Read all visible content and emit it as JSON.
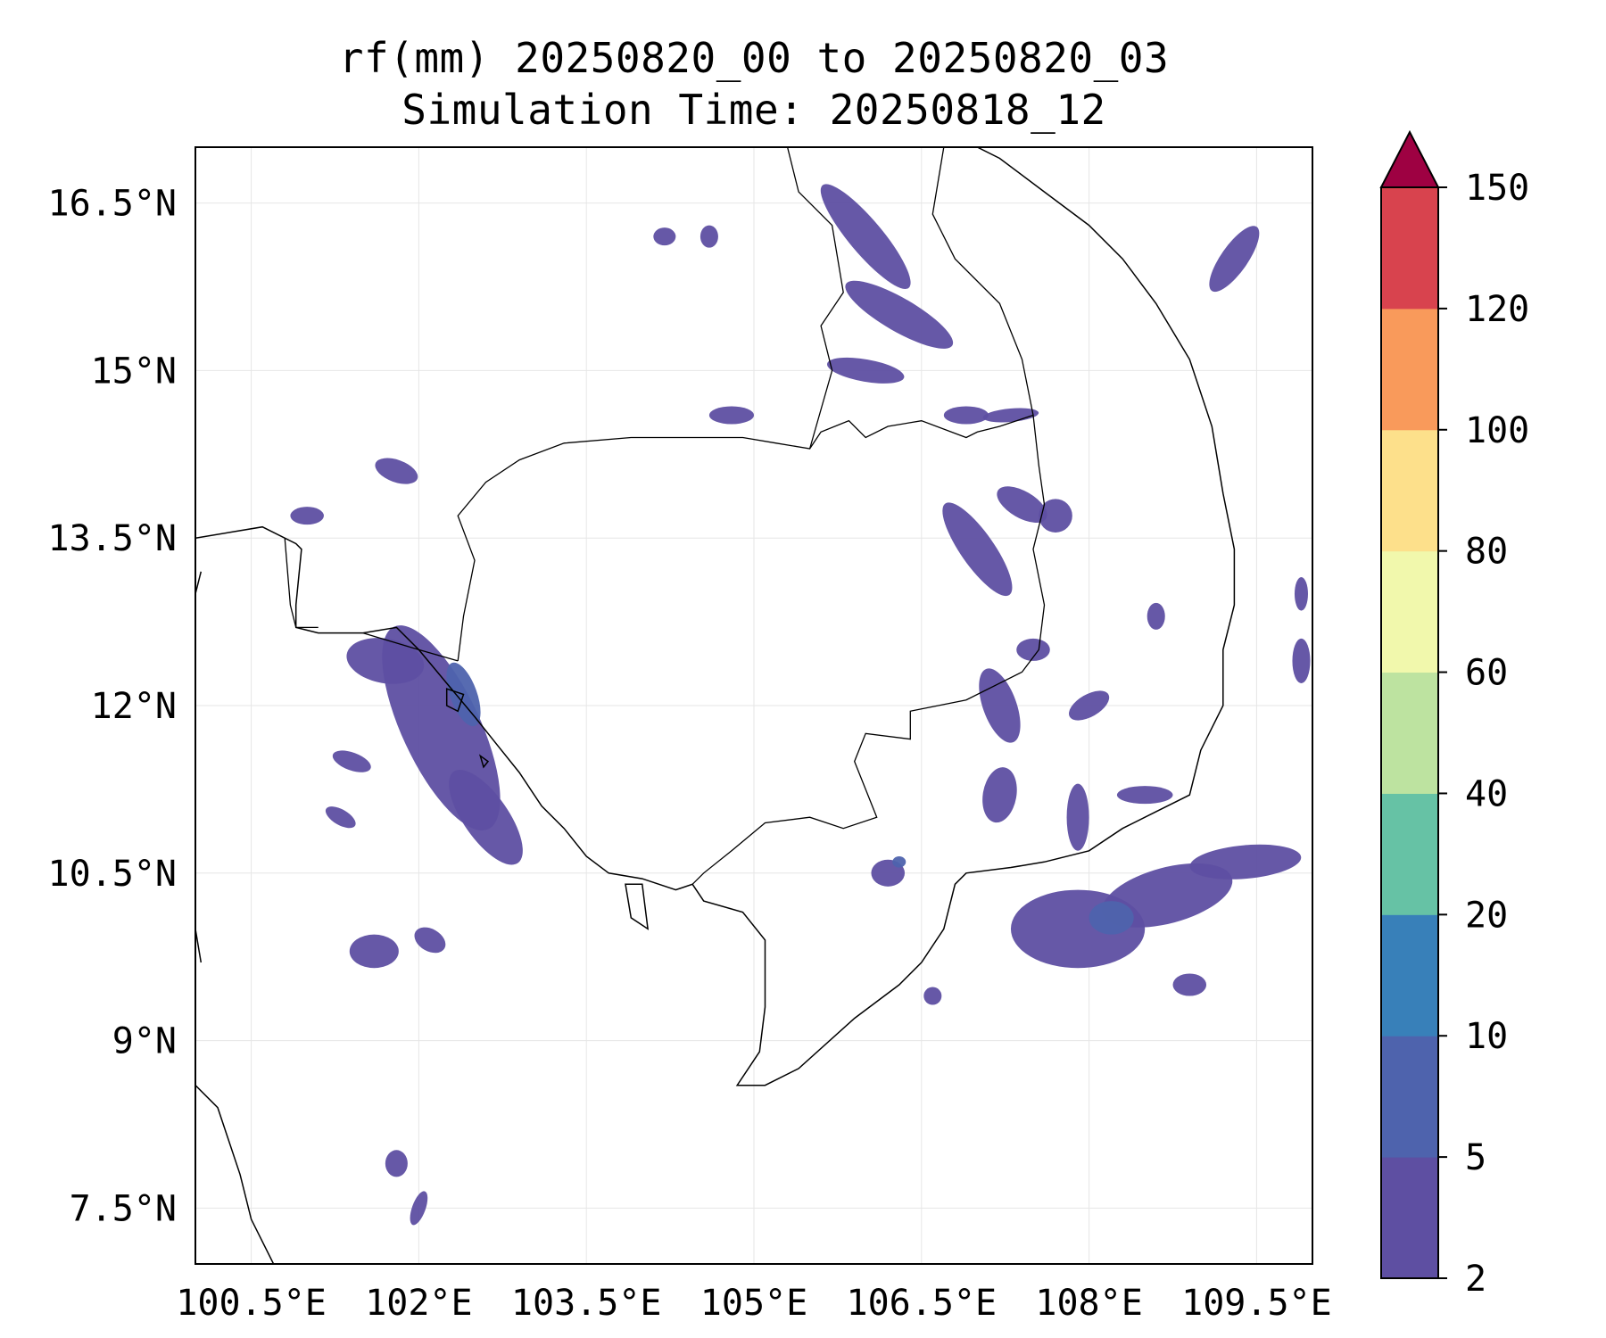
{
  "title": {
    "line1": "rf(mm) 20250820_00 to 20250820_03",
    "line2": "Simulation Time: 20250818_12"
  },
  "map": {
    "projection": "PlateCarree",
    "lon_range": [
      100.0,
      110.0
    ],
    "lat_range": [
      7.0,
      17.0
    ],
    "grid": true,
    "x_ticks": [
      {
        "value": 100.5,
        "label": "100.5°E"
      },
      {
        "value": 102.0,
        "label": "102°E"
      },
      {
        "value": 103.5,
        "label": "103.5°E"
      },
      {
        "value": 105.0,
        "label": "105°E"
      },
      {
        "value": 106.5,
        "label": "106.5°E"
      },
      {
        "value": 108.0,
        "label": "108°E"
      },
      {
        "value": 109.5,
        "label": "109.5°E"
      }
    ],
    "y_ticks": [
      {
        "value": 16.5,
        "label": "16.5°N"
      },
      {
        "value": 15.0,
        "label": "15°N"
      },
      {
        "value": 13.5,
        "label": "13.5°N"
      },
      {
        "value": 12.0,
        "label": "12°N"
      },
      {
        "value": 10.5,
        "label": "10.5°N"
      },
      {
        "value": 9.0,
        "label": "9°N"
      },
      {
        "value": 7.5,
        "label": "7.5°N"
      }
    ]
  },
  "colorbar": {
    "levels": [
      "2",
      "5",
      "10",
      "20",
      "40",
      "60",
      "80",
      "100",
      "120",
      "150"
    ],
    "colors": [
      "#5e4fa2",
      "#4e63ad",
      "#3880b9",
      "#66c2a5",
      "#bde3a0",
      "#f1f8ac",
      "#fde08b",
      "#f99a5b",
      "#d8434e"
    ],
    "extend_color": "#9e0142",
    "extend": "max"
  },
  "rain_cells": [
    {
      "lon": 102.2,
      "lat": 11.8,
      "rx": 0.35,
      "ry": 1.0,
      "rot": -25,
      "level": 1
    },
    {
      "lon": 102.6,
      "lat": 11.0,
      "rx": 0.2,
      "ry": 0.5,
      "rot": -35,
      "level": 1
    },
    {
      "lon": 101.7,
      "lat": 12.4,
      "rx": 0.35,
      "ry": 0.2,
      "rot": 10,
      "level": 1
    },
    {
      "lon": 102.4,
      "lat": 12.1,
      "rx": 0.12,
      "ry": 0.3,
      "rot": -20,
      "level": 2
    },
    {
      "lon": 101.4,
      "lat": 11.5,
      "rx": 0.18,
      "ry": 0.08,
      "rot": 20,
      "level": 1
    },
    {
      "lon": 101.3,
      "lat": 11.0,
      "rx": 0.15,
      "ry": 0.07,
      "rot": 30,
      "level": 1
    },
    {
      "lon": 101.6,
      "lat": 9.8,
      "rx": 0.22,
      "ry": 0.15,
      "rot": 0,
      "level": 1
    },
    {
      "lon": 102.1,
      "lat": 9.9,
      "rx": 0.15,
      "ry": 0.1,
      "rot": 30,
      "level": 1
    },
    {
      "lon": 101.8,
      "lat": 14.1,
      "rx": 0.2,
      "ry": 0.1,
      "rot": 20,
      "level": 1
    },
    {
      "lon": 101.0,
      "lat": 13.7,
      "rx": 0.15,
      "ry": 0.08,
      "rot": 0,
      "level": 1
    },
    {
      "lon": 101.8,
      "lat": 7.9,
      "rx": 0.1,
      "ry": 0.12,
      "rot": 0,
      "level": 1
    },
    {
      "lon": 102.0,
      "lat": 7.5,
      "rx": 0.06,
      "ry": 0.16,
      "rot": 20,
      "level": 1
    },
    {
      "lon": 104.2,
      "lat": 16.2,
      "rx": 0.1,
      "ry": 0.08,
      "rot": 0,
      "level": 1
    },
    {
      "lon": 104.6,
      "lat": 16.2,
      "rx": 0.08,
      "ry": 0.1,
      "rot": 0,
      "level": 1
    },
    {
      "lon": 104.8,
      "lat": 14.6,
      "rx": 0.2,
      "ry": 0.08,
      "rot": 0,
      "level": 1
    },
    {
      "lon": 106.0,
      "lat": 16.2,
      "rx": 0.15,
      "ry": 0.6,
      "rot": -40,
      "level": 1
    },
    {
      "lon": 106.3,
      "lat": 15.5,
      "rx": 0.55,
      "ry": 0.15,
      "rot": 30,
      "level": 1
    },
    {
      "lon": 106.0,
      "lat": 15.0,
      "rx": 0.35,
      "ry": 0.1,
      "rot": 10,
      "level": 1
    },
    {
      "lon": 106.9,
      "lat": 14.6,
      "rx": 0.2,
      "ry": 0.08,
      "rot": 0,
      "level": 1
    },
    {
      "lon": 107.3,
      "lat": 14.6,
      "rx": 0.25,
      "ry": 0.06,
      "rot": -5,
      "level": 1
    },
    {
      "lon": 107.0,
      "lat": 13.4,
      "rx": 0.15,
      "ry": 0.5,
      "rot": -35,
      "level": 1
    },
    {
      "lon": 107.4,
      "lat": 13.8,
      "rx": 0.25,
      "ry": 0.12,
      "rot": 30,
      "level": 1
    },
    {
      "lon": 107.7,
      "lat": 13.7,
      "rx": 0.15,
      "ry": 0.15,
      "rot": 0,
      "level": 1
    },
    {
      "lon": 107.2,
      "lat": 12.0,
      "rx": 0.15,
      "ry": 0.35,
      "rot": -20,
      "level": 1
    },
    {
      "lon": 107.5,
      "lat": 12.5,
      "rx": 0.15,
      "ry": 0.1,
      "rot": 0,
      "level": 1
    },
    {
      "lon": 107.2,
      "lat": 11.2,
      "rx": 0.15,
      "ry": 0.25,
      "rot": 10,
      "level": 1
    },
    {
      "lon": 107.9,
      "lat": 10.0,
      "rx": 0.6,
      "ry": 0.35,
      "rot": 0,
      "level": 1
    },
    {
      "lon": 108.7,
      "lat": 10.3,
      "rx": 0.6,
      "ry": 0.25,
      "rot": -15,
      "level": 1
    },
    {
      "lon": 109.4,
      "lat": 10.6,
      "rx": 0.5,
      "ry": 0.15,
      "rot": -5,
      "level": 1
    },
    {
      "lon": 108.2,
      "lat": 10.1,
      "rx": 0.2,
      "ry": 0.15,
      "rot": 0,
      "level": 2
    },
    {
      "lon": 108.5,
      "lat": 11.2,
      "rx": 0.25,
      "ry": 0.08,
      "rot": 0,
      "level": 1
    },
    {
      "lon": 107.9,
      "lat": 11.0,
      "rx": 0.1,
      "ry": 0.3,
      "rot": 0,
      "level": 1
    },
    {
      "lon": 108.0,
      "lat": 12.0,
      "rx": 0.2,
      "ry": 0.1,
      "rot": -30,
      "level": 1
    },
    {
      "lon": 108.6,
      "lat": 12.8,
      "rx": 0.08,
      "ry": 0.12,
      "rot": 0,
      "level": 1
    },
    {
      "lon": 109.3,
      "lat": 16.0,
      "rx": 0.12,
      "ry": 0.35,
      "rot": 35,
      "level": 1
    },
    {
      "lon": 109.9,
      "lat": 12.4,
      "rx": 0.08,
      "ry": 0.2,
      "rot": 0,
      "level": 1
    },
    {
      "lon": 109.9,
      "lat": 13.0,
      "rx": 0.06,
      "ry": 0.15,
      "rot": 0,
      "level": 1
    },
    {
      "lon": 106.6,
      "lat": 9.4,
      "rx": 0.08,
      "ry": 0.08,
      "rot": 0,
      "level": 1
    },
    {
      "lon": 108.9,
      "lat": 9.5,
      "rx": 0.15,
      "ry": 0.1,
      "rot": 0,
      "level": 1
    },
    {
      "lon": 106.2,
      "lat": 10.5,
      "rx": 0.15,
      "ry": 0.12,
      "rot": 0,
      "level": 1
    },
    {
      "lon": 106.3,
      "lat": 10.6,
      "rx": 0.06,
      "ry": 0.05,
      "rot": 0,
      "level": 2
    }
  ],
  "coastlines": [
    [
      [
        100.0,
        13.5
      ],
      [
        100.6,
        13.6
      ],
      [
        100.9,
        13.45
      ],
      [
        100.95,
        13.4
      ],
      [
        100.9,
        12.9
      ],
      [
        100.9,
        12.7
      ],
      [
        101.1,
        12.65
      ],
      [
        101.5,
        12.65
      ],
      [
        101.8,
        12.7
      ],
      [
        102.0,
        12.5
      ],
      [
        102.25,
        12.2
      ],
      [
        102.5,
        11.9
      ],
      [
        102.7,
        11.65
      ],
      [
        102.9,
        11.4
      ],
      [
        103.1,
        11.1
      ],
      [
        103.3,
        10.9
      ],
      [
        103.5,
        10.65
      ],
      [
        103.7,
        10.5
      ],
      [
        104.0,
        10.45
      ],
      [
        104.3,
        10.35
      ],
      [
        104.45,
        10.4
      ],
      [
        104.55,
        10.25
      ],
      [
        104.9,
        10.15
      ],
      [
        105.1,
        9.9
      ],
      [
        105.1,
        9.3
      ],
      [
        105.05,
        8.9
      ],
      [
        104.85,
        8.6
      ],
      [
        105.1,
        8.6
      ],
      [
        105.4,
        8.75
      ],
      [
        105.9,
        9.2
      ],
      [
        106.3,
        9.5
      ],
      [
        106.5,
        9.7
      ],
      [
        106.7,
        10.0
      ],
      [
        106.8,
        10.4
      ],
      [
        106.9,
        10.5
      ],
      [
        107.3,
        10.55
      ],
      [
        107.6,
        10.6
      ],
      [
        108.0,
        10.7
      ],
      [
        108.3,
        10.9
      ],
      [
        108.6,
        11.05
      ],
      [
        108.9,
        11.2
      ],
      [
        109.0,
        11.6
      ],
      [
        109.2,
        12.0
      ],
      [
        109.2,
        12.5
      ],
      [
        109.3,
        12.9
      ],
      [
        109.3,
        13.4
      ],
      [
        109.2,
        13.9
      ],
      [
        109.1,
        14.5
      ],
      [
        108.9,
        15.1
      ],
      [
        108.6,
        15.6
      ],
      [
        108.3,
        16.0
      ],
      [
        108.0,
        16.3
      ],
      [
        107.6,
        16.6
      ],
      [
        107.2,
        16.9
      ],
      [
        107.0,
        17.0
      ]
    ],
    [
      [
        100.0,
        8.6
      ],
      [
        100.2,
        8.4
      ],
      [
        100.4,
        7.8
      ],
      [
        100.5,
        7.4
      ],
      [
        100.7,
        7.0
      ]
    ],
    [
      [
        100.0,
        10.0
      ],
      [
        100.05,
        9.7
      ]
    ],
    [
      [
        100.0,
        13.0
      ],
      [
        100.05,
        13.2
      ]
    ]
  ],
  "islands": [
    [
      [
        102.25,
        12.15
      ],
      [
        102.4,
        12.1
      ],
      [
        102.35,
        11.95
      ],
      [
        102.25,
        12.0
      ]
    ],
    [
      [
        103.85,
        10.4
      ],
      [
        104.0,
        10.4
      ],
      [
        104.05,
        10.0
      ],
      [
        103.9,
        10.1
      ]
    ],
    [
      [
        102.55,
        11.55
      ],
      [
        102.62,
        11.5
      ],
      [
        102.58,
        11.45
      ]
    ]
  ],
  "borders": [
    [
      [
        100.8,
        13.5
      ],
      [
        100.85,
        12.9
      ],
      [
        100.9,
        12.7
      ],
      [
        101.1,
        12.7
      ]
    ],
    [
      [
        102.35,
        12.4
      ],
      [
        102.4,
        12.8
      ],
      [
        102.5,
        13.3
      ],
      [
        102.35,
        13.7
      ],
      [
        102.6,
        14.0
      ],
      [
        102.9,
        14.2
      ],
      [
        103.3,
        14.35
      ],
      [
        103.9,
        14.4
      ],
      [
        104.5,
        14.4
      ],
      [
        104.9,
        14.4
      ],
      [
        105.2,
        14.35
      ],
      [
        105.5,
        14.3
      ],
      [
        105.6,
        14.45
      ],
      [
        105.85,
        14.55
      ],
      [
        106.0,
        14.4
      ],
      [
        106.2,
        14.5
      ],
      [
        106.5,
        14.55
      ],
      [
        106.9,
        14.4
      ],
      [
        107.0,
        14.45
      ],
      [
        107.2,
        14.5
      ],
      [
        107.5,
        14.6
      ],
      [
        107.55,
        14.15
      ],
      [
        107.6,
        13.8
      ],
      [
        107.5,
        13.4
      ],
      [
        107.6,
        12.9
      ],
      [
        107.55,
        12.5
      ],
      [
        107.4,
        12.3
      ],
      [
        106.9,
        12.05
      ],
      [
        106.4,
        11.95
      ],
      [
        106.4,
        11.7
      ],
      [
        106.0,
        11.75
      ],
      [
        105.9,
        11.5
      ],
      [
        106.1,
        11.0
      ],
      [
        105.8,
        10.9
      ],
      [
        105.5,
        11.0
      ],
      [
        105.1,
        10.95
      ],
      [
        104.8,
        10.7
      ],
      [
        104.55,
        10.5
      ],
      [
        104.45,
        10.4
      ]
    ],
    [
      [
        102.35,
        12.4
      ],
      [
        102.0,
        12.5
      ],
      [
        101.5,
        12.65
      ]
    ],
    [
      [
        105.5,
        14.3
      ],
      [
        105.7,
        15.0
      ],
      [
        105.6,
        15.4
      ],
      [
        105.8,
        15.7
      ],
      [
        105.7,
        16.3
      ],
      [
        105.4,
        16.6
      ],
      [
        105.3,
        17.0
      ]
    ],
    [
      [
        107.5,
        14.6
      ],
      [
        107.4,
        15.1
      ],
      [
        107.2,
        15.6
      ],
      [
        106.8,
        16.0
      ],
      [
        106.6,
        16.4
      ],
      [
        106.7,
        17.0
      ]
    ]
  ]
}
